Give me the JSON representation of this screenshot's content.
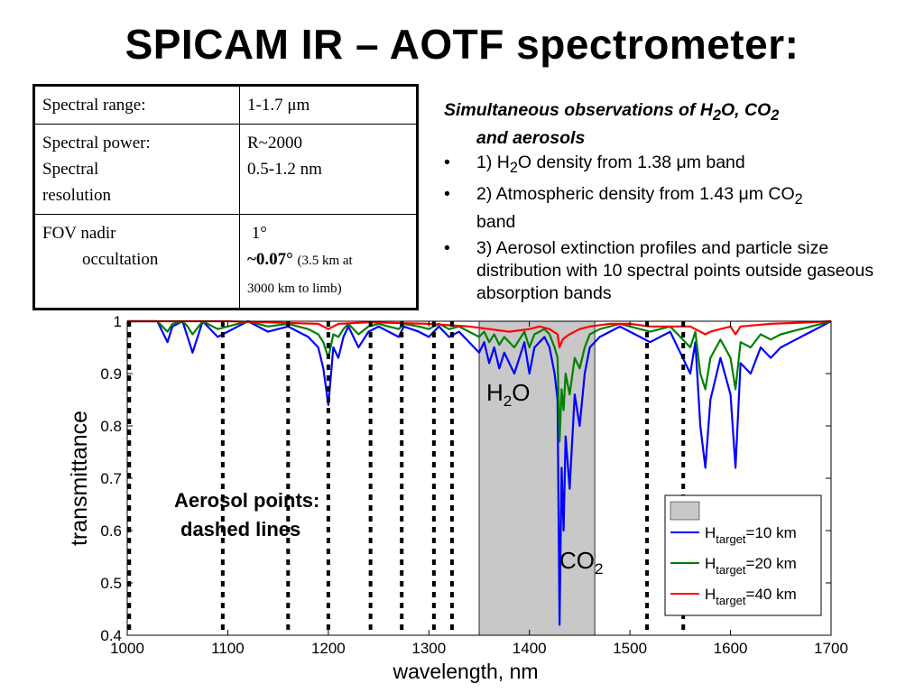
{
  "title": "SPICAM IR – AOTF spectrometer:",
  "specs": [
    {
      "label_lines": [
        "Spectral range:"
      ],
      "value_lines": [
        "1-1.7 μm"
      ]
    },
    {
      "label_lines": [
        "Spectral power:",
        "Spectral",
        "resolution"
      ],
      "value_lines": [
        "R~2000",
        "0.5-1.2 nm"
      ]
    },
    {
      "label_lines": [
        "FOV  nadir",
        "occultation"
      ],
      "value_lines": [
        "1°",
        "~0.07°",
        "(3.5 km at",
        "3000 km to limb)"
      ]
    }
  ],
  "notes": {
    "heading_pre": "Simultaneous observations of H",
    "heading_sub1": "2",
    "heading_mid": "O, CO",
    "heading_sub2": "2",
    "heading_cont": "and aerosols",
    "bullet_char": "•",
    "item1_pre": "1) H",
    "item1_sub": "2",
    "item1_post": "O density from 1.38 μm band",
    "item2_pre": "2) Atmospheric density from 1.43 μm CO",
    "item2_sub": "2",
    "item2_post": "band",
    "item3": "3) Aerosol extinction profiles and particle size distribution with 10 spectral points outside gaseous absorption bands"
  },
  "annotations": {
    "aerosol_line1": "Aerosol points:",
    "aerosol_line2": "dashed lines",
    "h2o_main": "H",
    "h2o_sub": "2",
    "h2o_tail": "O",
    "co2_main": "CO",
    "co2_sub": "2"
  },
  "chart_data": {
    "type": "line",
    "xlabel": "wavelength, nm",
    "ylabel": "transmittance",
    "xlim": [
      1000,
      1700
    ],
    "ylim": [
      0.4,
      1.0
    ],
    "xticks": [
      1000,
      1100,
      1200,
      1300,
      1400,
      1500,
      1600,
      1700
    ],
    "yticks": [
      0.4,
      0.5,
      0.6,
      0.7,
      0.8,
      0.9,
      1
    ],
    "ytick_labels": [
      "0.4",
      "0.5",
      "0.6",
      "0.7",
      "0.8",
      "0.9",
      "1"
    ],
    "grid": false,
    "legend_position": "bottom-right",
    "shaded_band": {
      "x": [
        1350,
        1465
      ],
      "color": "#c8c8c8"
    },
    "aerosol_points": [
      1002,
      1095,
      1160,
      1200,
      1242,
      1273,
      1305,
      1323,
      1517,
      1553
    ],
    "series": [
      {
        "name_main": "H",
        "name_sub": "target",
        "name_tail": "=10 km",
        "color": "#0000ff",
        "x": [
          1000,
          1030,
          1035,
          1040,
          1045,
          1055,
          1060,
          1065,
          1075,
          1080,
          1090,
          1100,
          1110,
          1120,
          1130,
          1140,
          1160,
          1170,
          1180,
          1190,
          1195,
          1200,
          1205,
          1210,
          1215,
          1220,
          1230,
          1240,
          1250,
          1260,
          1270,
          1275,
          1290,
          1300,
          1310,
          1320,
          1330,
          1340,
          1350,
          1355,
          1360,
          1365,
          1370,
          1375,
          1380,
          1385,
          1390,
          1395,
          1400,
          1405,
          1410,
          1415,
          1420,
          1425,
          1428,
          1430,
          1432,
          1434,
          1436,
          1440,
          1445,
          1450,
          1455,
          1460,
          1465,
          1470,
          1480,
          1490,
          1500,
          1510,
          1520,
          1530,
          1540,
          1550,
          1560,
          1565,
          1570,
          1575,
          1580,
          1590,
          1600,
          1605,
          1610,
          1620,
          1630,
          1640,
          1650,
          1660,
          1670,
          1680,
          1690,
          1700
        ],
        "y": [
          1.0,
          1.0,
          0.98,
          0.96,
          0.99,
          1.0,
          0.97,
          0.94,
          1.0,
          0.99,
          0.97,
          0.98,
          0.99,
          1.0,
          0.99,
          0.98,
          0.99,
          0.98,
          0.97,
          0.95,
          0.91,
          0.84,
          0.95,
          0.93,
          0.97,
          0.99,
          0.95,
          0.98,
          0.99,
          0.98,
          0.97,
          0.99,
          0.98,
          0.97,
          0.99,
          0.97,
          0.98,
          0.96,
          0.94,
          0.96,
          0.92,
          0.95,
          0.91,
          0.94,
          0.92,
          0.9,
          0.93,
          0.96,
          0.9,
          0.95,
          0.96,
          0.97,
          0.95,
          0.9,
          0.85,
          0.42,
          0.72,
          0.6,
          0.78,
          0.68,
          0.86,
          0.8,
          0.9,
          0.95,
          0.96,
          0.97,
          0.98,
          0.99,
          0.98,
          0.97,
          0.96,
          0.97,
          0.98,
          0.94,
          0.9,
          0.96,
          0.8,
          0.72,
          0.85,
          0.93,
          0.86,
          0.72,
          0.92,
          0.9,
          0.95,
          0.93,
          0.95,
          0.96,
          0.97,
          0.98,
          0.99,
          1.0
        ]
      },
      {
        "name_main": "H",
        "name_sub": "target",
        "name_tail": "=20 km",
        "color": "#008000",
        "x": [
          1000,
          1030,
          1035,
          1040,
          1045,
          1055,
          1060,
          1065,
          1075,
          1080,
          1090,
          1100,
          1110,
          1120,
          1130,
          1140,
          1160,
          1170,
          1180,
          1190,
          1195,
          1200,
          1205,
          1210,
          1215,
          1220,
          1230,
          1240,
          1250,
          1260,
          1270,
          1275,
          1290,
          1300,
          1310,
          1320,
          1330,
          1340,
          1350,
          1355,
          1360,
          1365,
          1370,
          1375,
          1380,
          1385,
          1390,
          1395,
          1400,
          1405,
          1410,
          1415,
          1420,
          1425,
          1428,
          1430,
          1432,
          1434,
          1436,
          1440,
          1445,
          1450,
          1455,
          1460,
          1465,
          1470,
          1480,
          1490,
          1500,
          1510,
          1520,
          1530,
          1540,
          1550,
          1560,
          1565,
          1570,
          1575,
          1580,
          1590,
          1600,
          1605,
          1610,
          1620,
          1630,
          1640,
          1650,
          1660,
          1670,
          1680,
          1690,
          1700
        ],
        "y": [
          1.0,
          1.0,
          0.99,
          0.98,
          0.995,
          1.0,
          0.99,
          0.975,
          1.0,
          0.995,
          0.985,
          0.99,
          0.995,
          1.0,
          0.995,
          0.99,
          0.995,
          0.99,
          0.985,
          0.975,
          0.96,
          0.93,
          0.975,
          0.97,
          0.985,
          0.995,
          0.975,
          0.99,
          0.995,
          0.99,
          0.985,
          0.995,
          0.99,
          0.985,
          0.995,
          0.985,
          0.99,
          0.98,
          0.97,
          0.98,
          0.96,
          0.975,
          0.955,
          0.97,
          0.96,
          0.95,
          0.965,
          0.98,
          0.95,
          0.975,
          0.98,
          0.985,
          0.975,
          0.95,
          0.93,
          0.77,
          0.87,
          0.83,
          0.9,
          0.86,
          0.93,
          0.91,
          0.95,
          0.975,
          0.98,
          0.985,
          0.99,
          0.995,
          0.99,
          0.985,
          0.98,
          0.985,
          0.99,
          0.97,
          0.95,
          0.98,
          0.9,
          0.87,
          0.93,
          0.965,
          0.93,
          0.87,
          0.96,
          0.95,
          0.975,
          0.965,
          0.975,
          0.98,
          0.985,
          0.99,
          0.995,
          1.0
        ]
      },
      {
        "name_main": "H",
        "name_sub": "target",
        "name_tail": "=40 km",
        "color": "#ff0000",
        "x": [
          1000,
          1100,
          1190,
          1200,
          1210,
          1240,
          1300,
          1340,
          1360,
          1380,
          1400,
          1410,
          1420,
          1428,
          1430,
          1433,
          1436,
          1440,
          1450,
          1460,
          1480,
          1500,
          1520,
          1560,
          1575,
          1580,
          1600,
          1605,
          1610,
          1640,
          1680,
          1700
        ],
        "y": [
          1.0,
          1.0,
          0.995,
          0.985,
          0.995,
          0.998,
          0.995,
          0.99,
          0.985,
          0.98,
          0.985,
          0.99,
          0.985,
          0.975,
          0.95,
          0.965,
          0.97,
          0.975,
          0.985,
          0.99,
          0.995,
          0.995,
          0.99,
          0.99,
          0.975,
          0.98,
          0.99,
          0.975,
          0.99,
          0.995,
          0.998,
          1.0
        ]
      }
    ]
  }
}
